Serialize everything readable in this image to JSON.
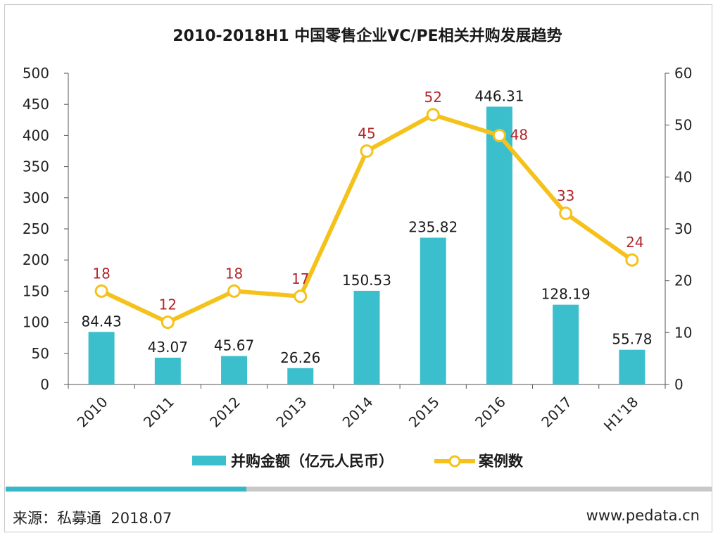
{
  "chart_data": {
    "type": "bar",
    "title": "2010-2018H1 中国零售企业VC/PE相关并购发展趋势",
    "categories": [
      "2010",
      "2011",
      "2012",
      "2013",
      "2014",
      "2015",
      "2016",
      "2017",
      "H1'18"
    ],
    "series": [
      {
        "name": "并购金额（亿元人民币）",
        "type": "bar",
        "axis": "left",
        "color": "#3cbfcc",
        "values": [
          84.43,
          43.07,
          45.67,
          26.26,
          150.53,
          235.82,
          446.31,
          128.19,
          55.78
        ],
        "labels": [
          "84.43",
          "43.07",
          "45.67",
          "26.26",
          "150.53",
          "235.82",
          "446.31",
          "128.19",
          "55.78"
        ]
      },
      {
        "name": "案例数",
        "type": "line",
        "axis": "right",
        "color": "#f5c21b",
        "label_color": "#b3262c",
        "values": [
          18,
          12,
          18,
          17,
          45,
          52,
          48,
          33,
          24
        ],
        "labels": [
          "18",
          "12",
          "18",
          "17",
          "45",
          "52",
          "48",
          "33",
          "24"
        ]
      }
    ],
    "y_left": {
      "min": 0,
      "max": 500,
      "ticks": [
        "0",
        "50",
        "100",
        "150",
        "200",
        "250",
        "300",
        "350",
        "400",
        "450",
        "500"
      ]
    },
    "y_right": {
      "min": 0,
      "max": 60,
      "ticks": [
        "0",
        "10",
        "20",
        "30",
        "40",
        "50",
        "60"
      ]
    },
    "grid": false,
    "legend_position": "bottom"
  },
  "legend": {
    "bar_label": "并购金额（亿元人民币）",
    "line_label": "案例数"
  },
  "footer": {
    "source": "来源：私募通  2018.07",
    "url": "www.pedata.cn"
  }
}
